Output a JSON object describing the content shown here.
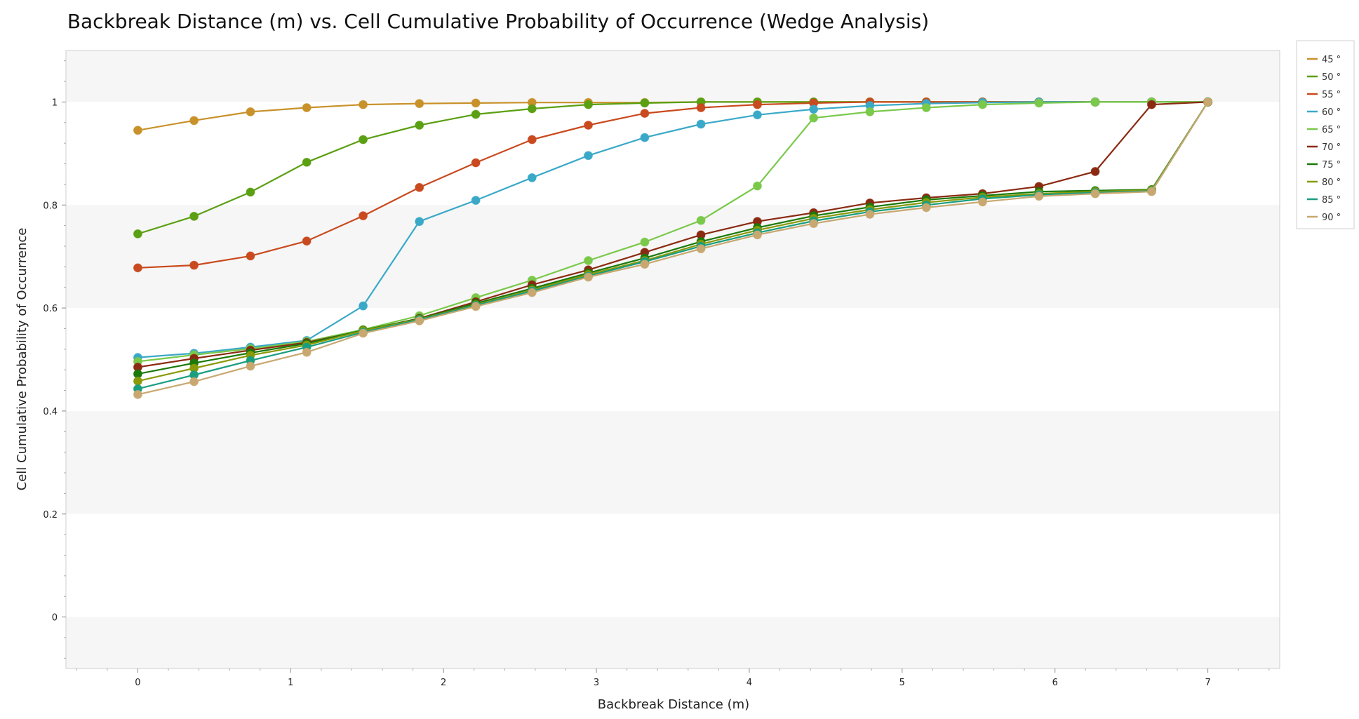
{
  "chart_data": {
    "type": "line",
    "title": "Backbreak Distance (m) vs. Cell Cumulative Probability of Occurrence (Wedge Analysis)",
    "xlabel": "Backbreak Distance (m)",
    "ylabel": "Cell Cumulative Probability of Occurrence",
    "xlim": [
      -0.47,
      7.47
    ],
    "ylim": [
      -0.1,
      1.1
    ],
    "xticks": [
      0,
      1,
      2,
      3,
      4,
      5,
      6,
      7
    ],
    "yticks": [
      0,
      0.2,
      0.4,
      0.6,
      0.8,
      1
    ],
    "grid": "alternating horizontal bands",
    "legend_position": "top-right outside",
    "x": [
      0,
      0.368,
      0.737,
      1.105,
      1.474,
      1.842,
      2.211,
      2.579,
      2.947,
      3.316,
      3.684,
      4.053,
      4.421,
      4.789,
      5.158,
      5.526,
      5.895,
      6.263,
      6.632,
      7
    ],
    "series": [
      {
        "name": "45 °",
        "color": "#c8912a",
        "values": [
          0.945,
          0.964,
          0.981,
          0.989,
          0.995,
          0.997,
          0.998,
          0.999,
          0.999,
          0.999,
          1,
          1,
          1,
          1,
          1,
          1,
          1,
          1,
          1,
          1
        ]
      },
      {
        "name": "50 °",
        "color": "#5aa012",
        "values": [
          0.744,
          0.778,
          0.825,
          0.883,
          0.927,
          0.955,
          0.976,
          0.987,
          0.995,
          0.998,
          1,
          1,
          1,
          1,
          1,
          1,
          1,
          1,
          1,
          1
        ]
      },
      {
        "name": "55 °",
        "color": "#c94a1e",
        "values": [
          0.678,
          0.683,
          0.701,
          0.73,
          0.779,
          0.834,
          0.882,
          0.927,
          0.955,
          0.978,
          0.989,
          0.995,
          0.998,
          1,
          1,
          1,
          1,
          1,
          1,
          1
        ]
      },
      {
        "name": "60 °",
        "color": "#3aa9c8",
        "values": [
          0.504,
          0.512,
          0.524,
          0.537,
          0.604,
          0.768,
          0.809,
          0.853,
          0.896,
          0.931,
          0.957,
          0.975,
          0.986,
          0.993,
          0.997,
          0.999,
          1,
          1,
          1,
          1
        ]
      },
      {
        "name": "65 °",
        "color": "#7ac94a",
        "values": [
          0.496,
          0.509,
          0.521,
          0.535,
          0.558,
          0.585,
          0.62,
          0.654,
          0.692,
          0.728,
          0.77,
          0.837,
          0.969,
          0.981,
          0.989,
          0.995,
          0.998,
          1,
          1,
          1
        ]
      },
      {
        "name": "70 °",
        "color": "#8b2a12",
        "values": [
          0.485,
          0.502,
          0.518,
          0.533,
          0.556,
          0.58,
          0.612,
          0.645,
          0.674,
          0.708,
          0.742,
          0.768,
          0.785,
          0.804,
          0.814,
          0.822,
          0.836,
          0.865,
          0.995,
          1
        ]
      },
      {
        "name": "75 °",
        "color": "#1a7a0a",
        "values": [
          0.472,
          0.493,
          0.513,
          0.531,
          0.557,
          0.579,
          0.609,
          0.638,
          0.668,
          0.697,
          0.729,
          0.756,
          0.779,
          0.796,
          0.81,
          0.818,
          0.826,
          0.828,
          0.83,
          1
        ]
      },
      {
        "name": "80 °",
        "color": "#8a9a08",
        "values": [
          0.458,
          0.483,
          0.508,
          0.528,
          0.556,
          0.578,
          0.606,
          0.635,
          0.665,
          0.692,
          0.724,
          0.751,
          0.774,
          0.791,
          0.805,
          0.815,
          0.822,
          0.826,
          0.829,
          1
        ]
      },
      {
        "name": "85 °",
        "color": "#1a9e80",
        "values": [
          0.443,
          0.47,
          0.498,
          0.524,
          0.553,
          0.577,
          0.605,
          0.633,
          0.662,
          0.69,
          0.72,
          0.746,
          0.769,
          0.787,
          0.8,
          0.812,
          0.82,
          0.824,
          0.827,
          1
        ]
      },
      {
        "name": "90 °",
        "color": "#c8a870",
        "values": [
          0.432,
          0.457,
          0.487,
          0.514,
          0.551,
          0.575,
          0.603,
          0.63,
          0.66,
          0.685,
          0.715,
          0.742,
          0.764,
          0.782,
          0.795,
          0.806,
          0.817,
          0.822,
          0.826,
          1
        ]
      }
    ]
  }
}
